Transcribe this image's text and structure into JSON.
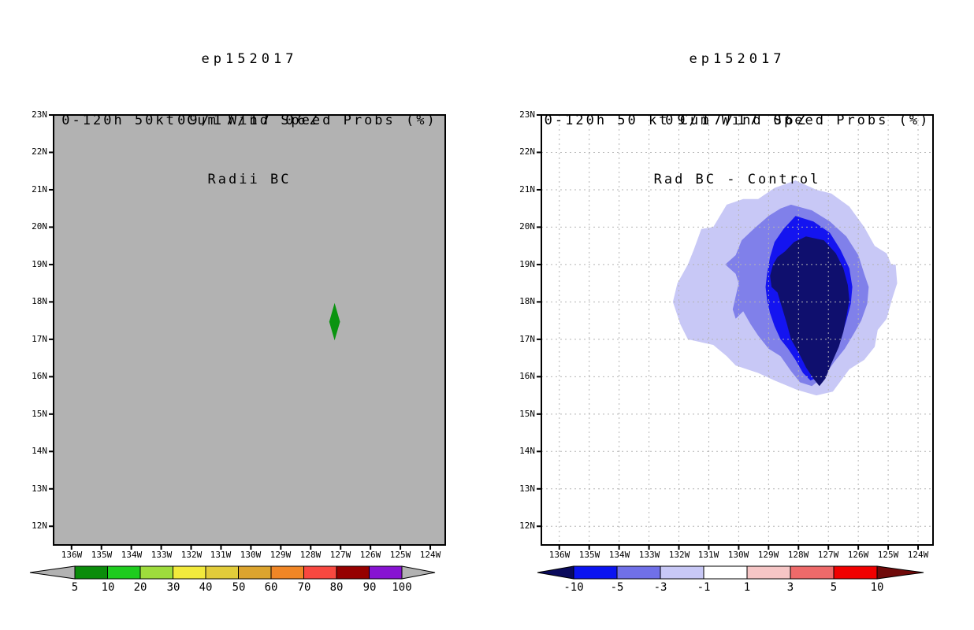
{
  "page": {
    "background": "#ffffff"
  },
  "chart_data": [
    {
      "type": "contour_map",
      "panel": "left",
      "header_lines": [
        "ep152017",
        "09/17/17 06Z"
      ],
      "title_lines": [
        "0-120h 50kt Cum Wind Speed Probs (%)",
        "Radii BC"
      ],
      "axes": {
        "lon_tick_labels": [
          "136W",
          "135W",
          "134W",
          "133W",
          "132W",
          "131W",
          "130W",
          "129W",
          "128W",
          "127W",
          "126W",
          "125W",
          "124W"
        ],
        "lon_tick_values": [
          136,
          135,
          134,
          133,
          132,
          131,
          130,
          129,
          128,
          127,
          126,
          125,
          124
        ],
        "lat_tick_labels": [
          "23N",
          "22N",
          "21N",
          "20N",
          "19N",
          "18N",
          "17N",
          "16N",
          "15N",
          "14N",
          "13N",
          "12N"
        ],
        "lat_tick_values": [
          23,
          22,
          21,
          20,
          19,
          18,
          17,
          16,
          15,
          14,
          13,
          12
        ],
        "lon_range_w": [
          136.6,
          123.5
        ],
        "lat_range_n": [
          11.5,
          23.0
        ],
        "grid": false,
        "grid_color": "#b4b4b4"
      },
      "background_fill": "#b2b2b2",
      "features": [
        {
          "kind": "diamond-marker",
          "label": "5-10% probability area",
          "lon_w": 127.2,
          "lat_n": 17.47,
          "half_width_deg": 0.18,
          "half_height_deg": 0.5,
          "color": "#0a9410"
        }
      ],
      "contours": [],
      "colorbar": {
        "tick_labels": [
          "5",
          "10",
          "20",
          "30",
          "40",
          "50",
          "60",
          "70",
          "80",
          "90",
          "100"
        ],
        "segment_colors": [
          "#0a8c0a",
          "#1ecc1e",
          "#9edc3c",
          "#f2ea3c",
          "#e2cc3a",
          "#dca42e",
          "#f08626",
          "#f84840",
          "#960000",
          "#8714d2"
        ],
        "under_color": "#b2b2b2",
        "over_color": "#b2b2b2"
      }
    },
    {
      "type": "contour_map",
      "panel": "right",
      "header_lines": [
        "ep152017",
        "09/17/17 06Z"
      ],
      "title_lines": [
        "0-120h 50 kt Cum Wind Speed Probs (%)",
        "Rad BC - Control"
      ],
      "axes": {
        "lon_tick_labels": [
          "136W",
          "135W",
          "134W",
          "133W",
          "132W",
          "131W",
          "130W",
          "129W",
          "128W",
          "127W",
          "126W",
          "125W",
          "124W"
        ],
        "lon_tick_values": [
          136,
          135,
          134,
          133,
          132,
          131,
          130,
          129,
          128,
          127,
          126,
          125,
          124
        ],
        "lat_tick_labels": [
          "23N",
          "22N",
          "21N",
          "20N",
          "19N",
          "18N",
          "17N",
          "16N",
          "15N",
          "14N",
          "13N",
          "12N"
        ],
        "lat_tick_values": [
          23,
          22,
          21,
          20,
          19,
          18,
          17,
          16,
          15,
          14,
          13,
          12
        ],
        "lon_range_w": [
          136.6,
          123.5
        ],
        "lat_range_n": [
          11.5,
          23.0
        ],
        "grid": true,
        "grid_color": "#b4b4b4"
      },
      "background_fill": "#ffffff",
      "features": [],
      "contours": [
        {
          "level": -1,
          "color": "#c8c8f6",
          "polygon_lon_lat": [
            [
              128.1,
              21.25
            ],
            [
              127.4,
              21.0
            ],
            [
              126.9,
              20.9
            ],
            [
              126.3,
              20.55
            ],
            [
              125.8,
              20.0
            ],
            [
              125.45,
              19.5
            ],
            [
              125.05,
              19.3
            ],
            [
              124.9,
              19.0
            ],
            [
              124.75,
              19.0
            ],
            [
              124.7,
              18.5
            ],
            [
              124.9,
              18.0
            ],
            [
              125.05,
              17.55
            ],
            [
              125.35,
              17.25
            ],
            [
              125.45,
              16.8
            ],
            [
              125.8,
              16.45
            ],
            [
              126.3,
              16.2
            ],
            [
              126.85,
              15.6
            ],
            [
              127.4,
              15.5
            ],
            [
              128.05,
              15.65
            ],
            [
              128.8,
              15.9
            ],
            [
              129.35,
              16.1
            ],
            [
              130.1,
              16.3
            ],
            [
              130.4,
              16.55
            ],
            [
              130.85,
              16.85
            ],
            [
              131.7,
              17.0
            ],
            [
              131.95,
              17.4
            ],
            [
              132.2,
              18.0
            ],
            [
              132.05,
              18.5
            ],
            [
              131.7,
              19.0
            ],
            [
              131.5,
              19.4
            ],
            [
              131.25,
              19.95
            ],
            [
              130.85,
              20.0
            ],
            [
              130.4,
              20.6
            ],
            [
              129.85,
              20.75
            ],
            [
              129.35,
              20.75
            ],
            [
              128.8,
              21.05
            ]
          ]
        },
        {
          "level": -3,
          "color": "#8080ea",
          "polygon_lon_lat": [
            [
              128.25,
              20.6
            ],
            [
              127.55,
              20.45
            ],
            [
              126.95,
              20.15
            ],
            [
              126.4,
              19.75
            ],
            [
              126.0,
              19.25
            ],
            [
              125.8,
              18.75
            ],
            [
              125.65,
              18.4
            ],
            [
              125.7,
              17.95
            ],
            [
              125.9,
              17.5
            ],
            [
              126.15,
              17.15
            ],
            [
              126.45,
              16.75
            ],
            [
              126.8,
              16.4
            ],
            [
              127.15,
              16.0
            ],
            [
              127.55,
              15.75
            ],
            [
              127.95,
              15.85
            ],
            [
              128.25,
              16.15
            ],
            [
              128.6,
              16.55
            ],
            [
              129.0,
              16.75
            ],
            [
              129.35,
              17.1
            ],
            [
              129.6,
              17.4
            ],
            [
              129.85,
              17.75
            ],
            [
              130.1,
              17.55
            ],
            [
              130.2,
              17.8
            ],
            [
              130.1,
              18.15
            ],
            [
              130.0,
              18.5
            ],
            [
              130.1,
              18.75
            ],
            [
              130.45,
              19.0
            ],
            [
              130.1,
              19.25
            ],
            [
              129.9,
              19.65
            ],
            [
              129.5,
              19.95
            ],
            [
              129.0,
              20.3
            ],
            [
              128.6,
              20.5
            ]
          ]
        },
        {
          "level": -5,
          "color": "#1414f0",
          "polygon_lon_lat": [
            [
              128.1,
              20.3
            ],
            [
              127.5,
              20.15
            ],
            [
              126.95,
              19.85
            ],
            [
              126.6,
              19.4
            ],
            [
              126.3,
              18.9
            ],
            [
              126.2,
              18.4
            ],
            [
              126.25,
              17.95
            ],
            [
              126.4,
              17.5
            ],
            [
              126.55,
              17.1
            ],
            [
              126.75,
              16.65
            ],
            [
              127.05,
              16.3
            ],
            [
              127.3,
              16.0
            ],
            [
              127.6,
              15.9
            ],
            [
              127.85,
              16.1
            ],
            [
              128.1,
              16.45
            ],
            [
              128.35,
              16.75
            ],
            [
              128.6,
              17.0
            ],
            [
              128.8,
              17.35
            ],
            [
              128.95,
              17.7
            ],
            [
              129.05,
              18.05
            ],
            [
              129.1,
              18.4
            ],
            [
              129.05,
              18.75
            ],
            [
              128.95,
              19.2
            ],
            [
              128.8,
              19.6
            ],
            [
              128.5,
              19.95
            ]
          ]
        },
        {
          "level": -10,
          "color": "#0f0f6e",
          "polygon_lon_lat": [
            [
              127.75,
              19.75
            ],
            [
              127.15,
              19.65
            ],
            [
              126.75,
              19.3
            ],
            [
              126.5,
              18.9
            ],
            [
              126.35,
              18.45
            ],
            [
              126.3,
              18.05
            ],
            [
              126.4,
              17.6
            ],
            [
              126.5,
              17.2
            ],
            [
              126.65,
              16.8
            ],
            [
              126.9,
              16.35
            ],
            [
              127.1,
              15.95
            ],
            [
              127.3,
              15.75
            ],
            [
              127.5,
              15.95
            ],
            [
              127.75,
              16.25
            ],
            [
              128.0,
              16.65
            ],
            [
              128.25,
              17.0
            ],
            [
              128.4,
              17.45
            ],
            [
              128.55,
              17.85
            ],
            [
              128.7,
              18.25
            ],
            [
              128.9,
              18.4
            ],
            [
              128.95,
              18.7
            ],
            [
              128.85,
              19.0
            ],
            [
              128.7,
              19.2
            ],
            [
              128.45,
              19.35
            ],
            [
              128.15,
              19.6
            ]
          ]
        }
      ],
      "colorbar": {
        "tick_labels": [
          "-10",
          "-5",
          "-3",
          "-1",
          "1",
          "3",
          "5",
          "10"
        ],
        "segment_colors": [
          "#0a14f0",
          "#7070e8",
          "#c8c8f6",
          "#ffffff",
          "#f6c6c6",
          "#ee6a6a",
          "#f00000"
        ],
        "under_color": "#0a0a5c",
        "over_color": "#700a0a"
      }
    }
  ]
}
